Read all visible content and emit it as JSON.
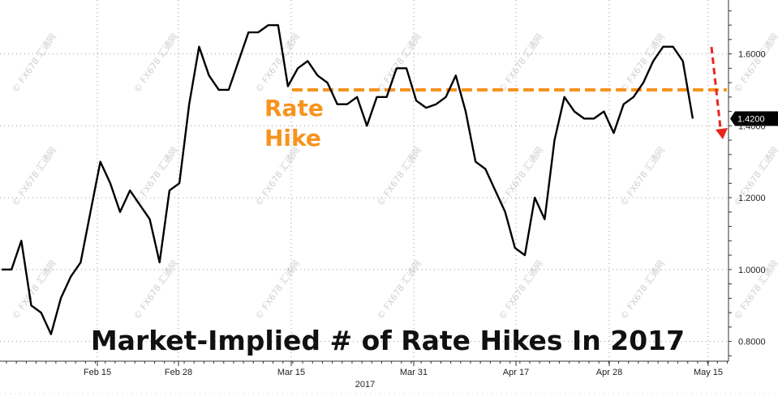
{
  "chart_data": {
    "type": "line",
    "title": "Market-Implied # of Rate Hikes In 2017",
    "x_tick_labels": [
      "Feb 15",
      "Feb 28",
      "Mar 15",
      "Mar 31",
      "Apr 17",
      "Apr 28",
      "May 15"
    ],
    "x_year_label": "2017",
    "y_tick_labels": [
      "0.8000",
      "1.0000",
      "1.2000",
      "1.4000",
      "1.6000"
    ],
    "y_ticks": [
      0.8,
      1.0,
      1.2,
      1.4,
      1.6
    ],
    "ylim": [
      0.745,
      1.75
    ],
    "series": [
      {
        "color": "#000000",
        "values": [
          1.0,
          1.0,
          1.08,
          0.9,
          0.88,
          0.82,
          0.92,
          0.98,
          1.02,
          1.16,
          1.3,
          1.24,
          1.16,
          1.22,
          1.18,
          1.14,
          1.02,
          1.22,
          1.24,
          1.46,
          1.62,
          1.54,
          1.5,
          1.5,
          1.58,
          1.66,
          1.66,
          1.68,
          1.68,
          1.51,
          1.56,
          1.58,
          1.54,
          1.52,
          1.46,
          1.46,
          1.48,
          1.4,
          1.48,
          1.48,
          1.56,
          1.56,
          1.47,
          1.45,
          1.46,
          1.48,
          1.54,
          1.44,
          1.3,
          1.28,
          1.22,
          1.16,
          1.06,
          1.04,
          1.2,
          1.14,
          1.36,
          1.48,
          1.44,
          1.42,
          1.42,
          1.44,
          1.38,
          1.46,
          1.48,
          1.52,
          1.58,
          1.62,
          1.62,
          1.58,
          1.42
        ]
      }
    ],
    "last_value_label": "1.4200",
    "reference_line": {
      "value": 1.5,
      "color": "#f7931e"
    },
    "annotation": {
      "line1": "Rate",
      "line2": "Hike",
      "color": "#f7931e"
    },
    "arrow_color": "#e8251f",
    "grid": true,
    "watermark_text": "© FX678 汇通网"
  }
}
